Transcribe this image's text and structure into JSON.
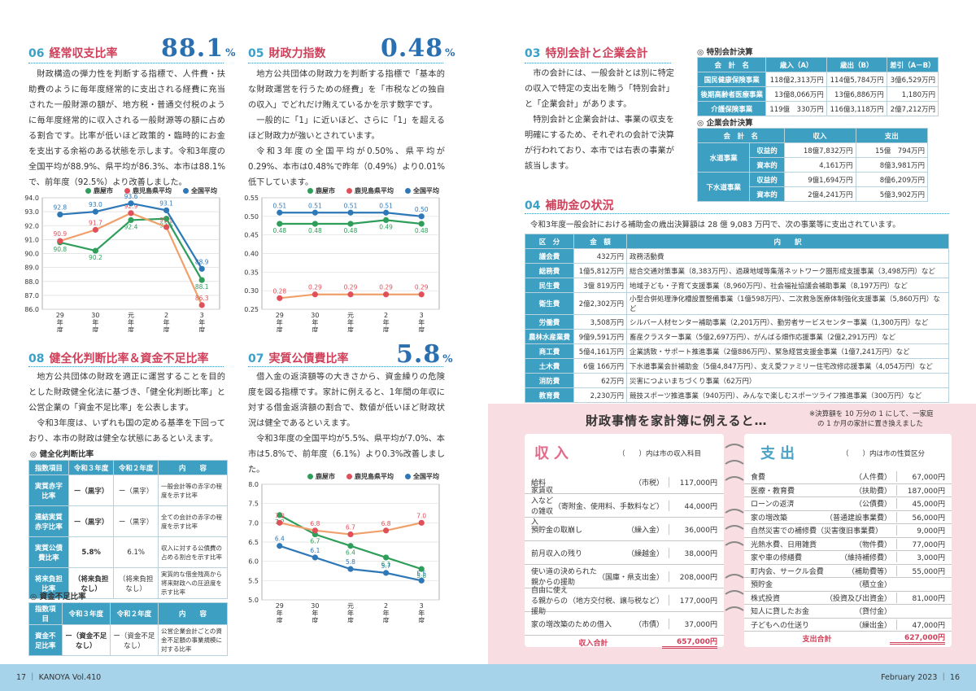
{
  "s06": {
    "num": "06",
    "name": "経常収支比率",
    "value": "88.1",
    "unit": "%",
    "text": "財政構造の弾力性を判断する指標で、人件費・扶助費のように毎年度経常的に支出される経費に充当された一般財源の額が、地方税・普通交付税のように毎年度経常的に収入される一般財源等の額に占める割合です。比率が低いほど政策的・臨時的にお金を支出する余裕のある状態を示します。令和3年度の全国平均が88.9%、県平均が86.3%、本市は88.1%で、前年度（92.5%）より改善しました。"
  },
  "s05": {
    "num": "05",
    "name": "財政力指数",
    "value": "0.48",
    "unit": "%",
    "text1": "地方公共団体の財政力を判断する指標で「基本的な財政運営を行うための経費」を「市税などの独自の収入」でどれだけ賄えているかを示す数字です。",
    "text2": "一般的に「1」に近いほど、さらに「1」を超えるほど財政力が強いとされています。",
    "text3": "令和3年度の全国平均が0.50%、県平均が0.29%、本市は0.48%で昨年（0.49%）より0.01%低下しています。"
  },
  "s08": {
    "num": "08",
    "name": "健全化判断比率＆資金不足比率",
    "text1": "地方公共団体の財政を適正に運営することを目的とした財政健全化法に基づき、「健全化判断比率」と公営企業の「資金不足比率」を公表します。",
    "text2": "令和3年度は、いずれも国の定める基準を下回っており、本市の財政は健全な状態にあるといえます。",
    "t1_title": "◎ 健全化判断比率",
    "t1_head": [
      "指数項目",
      "令和３年度",
      "令和２年度",
      "内　　容"
    ],
    "t1_rows": [
      {
        "item": "実質赤字比率",
        "r3": "ー（黒字）",
        "r2": "ー（黒字）",
        "desc": "一般会計等の赤字の程度を示す比率"
      },
      {
        "item": "連結実質赤字比率",
        "r3": "ー（黒字）",
        "r2": "ー（黒字）",
        "desc": "全ての会計の赤字の程度を示す比率"
      },
      {
        "item": "実質公債費比率",
        "r3": "5.8%",
        "r2": "6.1%",
        "desc": "収入に対する公債費の占める割合を示す比率"
      },
      {
        "item": "将来負担比率",
        "r3": "（将来負担なし）",
        "r2": "（将来負担なし）",
        "desc": "実質的な借金残高から将来財政への圧迫度を示す比率"
      }
    ],
    "t2_title": "◎ 資金不足比率",
    "t2_head": [
      "指数項目",
      "令和３年度",
      "令和２年度",
      "内　　容"
    ],
    "t2_rows": [
      {
        "item": "資金不足比率",
        "r3": "ー（資金不足なし）",
        "r2": "ー（資金不足なし）",
        "desc": "公営企業会計ごとの資金不足額の事業規模に対する比率"
      }
    ]
  },
  "s07": {
    "num": "07",
    "name": "実質公債費比率",
    "value": "5.8",
    "unit": "%",
    "text1": "借入金の返済額等の大きさから、資金繰りの危険度を図る指標です。家計に例えると、1年間の年収に対する借金返済額の割合で、数値が低いほど財政状況は健全であるといえます。",
    "text2": "令和3年度の全国平均が5.5%、県平均が7.0%、本市は5.8%で、前年度（6.1%）より0.3%改善しました。"
  },
  "legend": [
    "鹿屋市",
    "鹿児島県平均",
    "全国平均"
  ],
  "colors": {
    "city": "#2e9e5a",
    "pref": "#f0a06a",
    "nation": "#2f78b8",
    "pref_dot": "#e0505a"
  },
  "xlabels": [
    "29年度",
    "30年度",
    "元年度",
    "2年度",
    "3年度"
  ],
  "chart_data": [
    {
      "type": "line",
      "id": "c06",
      "categories": [
        "29年度",
        "30年度",
        "元年度",
        "2年度",
        "3年度"
      ],
      "ylim": [
        86.0,
        94.0
      ],
      "yticks": [
        "94.0",
        "93.0",
        "92.0",
        "91.0",
        "90.0",
        "89.0",
        "88.0",
        "87.0",
        "86.0"
      ],
      "series": [
        {
          "name": "鹿屋市",
          "values": [
            90.8,
            90.2,
            92.4,
            92.5,
            88.1
          ]
        },
        {
          "name": "鹿児島県平均",
          "values": [
            90.9,
            91.7,
            92.9,
            91.9,
            86.3
          ]
        },
        {
          "name": "全国平均",
          "values": [
            92.8,
            93.0,
            93.6,
            93.1,
            88.9
          ]
        }
      ]
    },
    {
      "type": "line",
      "id": "c05",
      "categories": [
        "29年度",
        "30年度",
        "元年度",
        "2年度",
        "3年度"
      ],
      "ylim": [
        0.25,
        0.55
      ],
      "yticks": [
        "0.55",
        "0.50",
        "0.45",
        "0.40",
        "0.35",
        "0.30",
        "0.25"
      ],
      "series": [
        {
          "name": "鹿屋市",
          "values": [
            0.48,
            0.48,
            0.48,
            0.49,
            0.48
          ]
        },
        {
          "name": "鹿児島県平均",
          "values": [
            0.28,
            0.29,
            0.29,
            0.29,
            0.29
          ]
        },
        {
          "name": "全国平均",
          "values": [
            0.51,
            0.51,
            0.51,
            0.51,
            0.5
          ]
        }
      ]
    },
    {
      "type": "line",
      "id": "c07",
      "categories": [
        "29年度",
        "30年度",
        "元年度",
        "2年度",
        "3年度"
      ],
      "ylim": [
        5.0,
        8.0
      ],
      "yticks": [
        "8.0",
        "7.5",
        "7.0",
        "6.5",
        "6.0",
        "5.5",
        "5.0"
      ],
      "series": [
        {
          "name": "鹿屋市",
          "values": [
            7.2,
            6.7,
            6.4,
            6.1,
            5.8
          ]
        },
        {
          "name": "鹿児島県平均",
          "values": [
            7.0,
            6.8,
            6.7,
            6.8,
            7.0
          ]
        },
        {
          "name": "全国平均",
          "values": [
            6.4,
            6.1,
            5.8,
            5.7,
            5.5
          ]
        }
      ]
    }
  ],
  "s03": {
    "num": "03",
    "name": "特別会計と企業会計",
    "text1": "市の会計には、一般会計とは別に特定の収入で特定の支出を賄う「特別会計」と「企業会計」があります。",
    "text2": "特別会計と企業会計は、事業の収支を明確にするため、それぞれの会計で決算が行われており、本市では右表の事業が該当します。",
    "t1_title": "◎ 特別会計決算",
    "t1_head": [
      "会　計　名",
      "歳入（A）",
      "歳出（B）",
      "差引（A－B）"
    ],
    "t1_rows": [
      [
        "国民健康保険事業",
        "118億2,313万円",
        "114億5,784万円",
        "3億6,529万円"
      ],
      [
        "後期高齢者医療事業",
        "13億8,066万円",
        "13億6,886万円",
        "1,180万円"
      ],
      [
        "介護保険事業",
        "119億　330万円",
        "116億3,118万円",
        "2億7,212万円"
      ]
    ],
    "t2_title": "◎ 企業会計決算",
    "t2_head": [
      "会　計　名",
      "",
      "収入",
      "支出"
    ],
    "t2_rows": [
      {
        "name": "水道事業",
        "rows": [
          [
            "収益的",
            "18億7,832万円",
            "15億　794万円"
          ],
          [
            "資本的",
            "4,161万円",
            "8億3,981万円"
          ]
        ]
      },
      {
        "name": "下水道事業",
        "rows": [
          [
            "収益的",
            "9億1,694万円",
            "8億6,209万円"
          ],
          [
            "資本的",
            "2億4,241万円",
            "5億3,902万円"
          ]
        ]
      }
    ]
  },
  "s04": {
    "num": "04",
    "name": "補助金の状況",
    "intro": "令和3年度一般会計における補助金の歳出決算額は 28 億 9,083 万円で、次の事業等に支出されています。",
    "head": [
      "区　分",
      "金　額",
      "内　　訳"
    ],
    "rows": [
      [
        "議会費",
        "432万円",
        "政務活動費"
      ],
      [
        "総務費",
        "1億5,812万円",
        "総合交通対策事業（8,383万円）、過疎地域等集落ネットワーク圏形成支援事業（3,498万円）など"
      ],
      [
        "民生費",
        "3億 819万円",
        "地域子ども・子育て支援事業（8,960万円）、社会福祉協議会補助事業（8,197万円）など"
      ],
      [
        "衛生費",
        "2億2,302万円",
        "小型合併処理浄化槽設置整備事業（1億598万円）、二次救急医療体制強化支援事業（5,860万円）など"
      ],
      [
        "労働費",
        "3,508万円",
        "シルバー人材センター補助事業（2,201万円）、勤労者サービスセンター事業（1,300万円）など"
      ],
      [
        "農林水産業費",
        "9億9,591万円",
        "畜産クラスター事業（5億2,697万円）、がんばる畑作応援事業（2億2,291万円）など"
      ],
      [
        "商工費",
        "5億4,161万円",
        "企業誘致・サポート推進事業（2億886万円）、緊急経営支援金事業（1億7,241万円）など"
      ],
      [
        "土木費",
        "6億 166万円",
        "下水道事業会計補助金（5億4,847万円）、支え愛ファミリー住宅改修応援事業（4,054万円）など"
      ],
      [
        "消防費",
        "62万円",
        "災害につよいまちづくり事業（62万円）"
      ],
      [
        "教育費",
        "2,230万円",
        "競技スポーツ推進事業（940万円）、みんなで楽しむスポーツライフ推進事業（300万円）など"
      ]
    ]
  },
  "kakei": {
    "title": "財政事情を家計簿に例えると…",
    "note1": "※決算額を 10 万分の 1 にして、一家庭",
    "note2": "の 1 か月の家計に置き換えました",
    "in_title": "収入",
    "in_note": "（　　）内は市の収入科目",
    "in_rows": [
      [
        "給料",
        "（市税）",
        "117,000円"
      ],
      [
        "家賃収入などの雑収入",
        "（寄附金、使用料、手数料など）",
        "44,000円"
      ],
      [
        "預貯金の取崩し",
        "（繰入金）",
        "36,000円"
      ],
      [
        "前月収入の残り",
        "（繰越金）",
        "38,000円"
      ],
      [
        "使い道の決められた親からの援助",
        "（国庫・県支出金）",
        "208,000円"
      ],
      [
        "自由に使える親からの援助",
        "（地方交付税、譲与税など）",
        "177,000円"
      ],
      [
        "家の増改築のための借入",
        "（市債）",
        "37,000円"
      ]
    ],
    "in_total_label": "収入合計",
    "in_total": "657,000円",
    "out_title": "支出",
    "out_note": "（　　）内は市の性質区分",
    "out_rows": [
      [
        "食費",
        "（人件費）",
        "67,000円"
      ],
      [
        "医療・教育費",
        "（扶助費）",
        "187,000円"
      ],
      [
        "ローンの返済",
        "（公債費）",
        "45,000円"
      ],
      [
        "家の増改築",
        "（普通建設事業費）",
        "56,000円"
      ],
      [
        "自然災害での補修費（災害復旧事業費）",
        "",
        "9,000円"
      ],
      [
        "光熱水費、日用雑貨",
        "（物件費）",
        "77,000円"
      ],
      [
        "家や車の修繕費",
        "（維持補修費）",
        "3,000円"
      ],
      [
        "町内会、サークル会費",
        "（補助費等）",
        "55,000円"
      ],
      [
        "預貯金",
        "（積立金）",
        ""
      ],
      [
        "株式投資",
        "（投資及び出資金）",
        "81,000円"
      ],
      [
        "知人に貸したお金",
        "（貸付金）",
        ""
      ],
      [
        "子どもへの仕送り",
        "（繰出金）",
        "47,000円"
      ]
    ],
    "out_total_label": "支出合計",
    "out_total": "627,000円"
  },
  "footer": {
    "left": "17 ｜ KANOYA Vol.410",
    "right": "February 2023 ｜ 16"
  }
}
